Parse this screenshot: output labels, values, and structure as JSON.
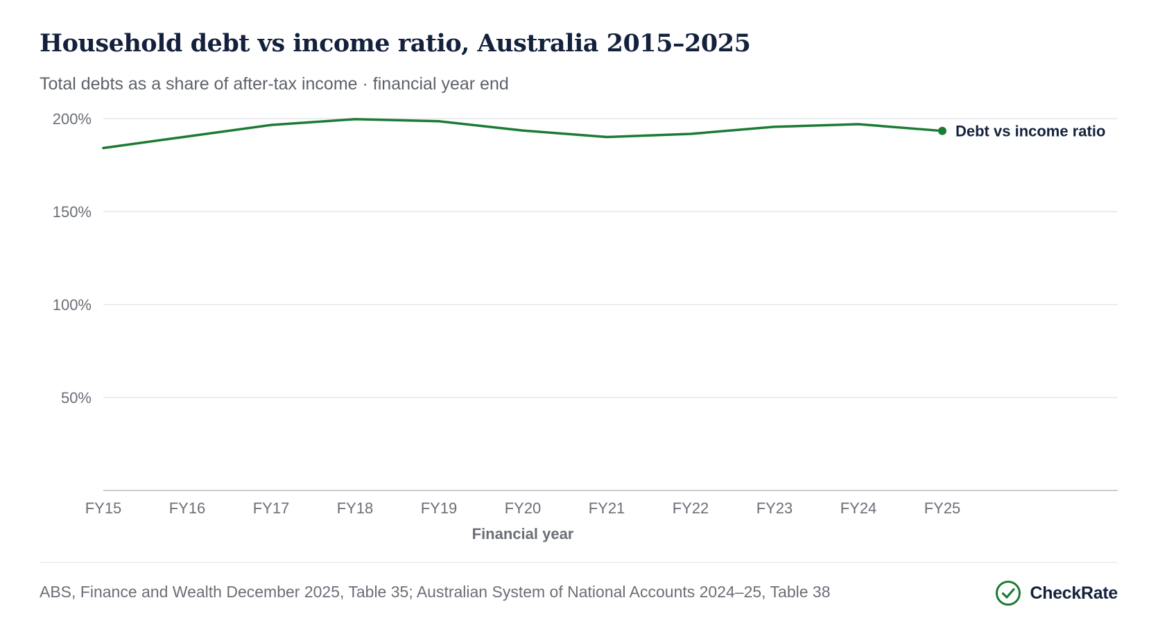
{
  "header": {
    "title": "Household debt vs income ratio, Australia 2015–2025",
    "subtitle": "Total debts as a share of after-tax income · financial year end"
  },
  "footer": {
    "source": "ABS, Finance and Wealth December 2025, Table 35; Australian System of National Accounts 2024–25, Table 38",
    "brand_name": "CheckRate",
    "brand_icon": "check-circle-icon"
  },
  "colors": {
    "series": "#1b7a34",
    "title": "#14213d",
    "grid": "#e3e5e8",
    "axis": "#c9ccd1",
    "tick_text": "#6a6e76"
  },
  "chart_data": {
    "type": "line",
    "title": "Household debt vs income ratio, Australia 2015–2025",
    "subtitle": "Total debts as a share of after-tax income · financial year end",
    "xlabel": "Financial year",
    "ylabel": "",
    "categories": [
      "FY15",
      "FY16",
      "FY17",
      "FY18",
      "FY19",
      "FY20",
      "FY21",
      "FY22",
      "FY23",
      "FY24",
      "FY25"
    ],
    "series": [
      {
        "name": "Debt vs income ratio",
        "color": "#1b7a34",
        "values": [
          184.2,
          190.4,
          196.6,
          199.7,
          198.6,
          193.6,
          190.1,
          191.8,
          195.6,
          197.0,
          193.4
        ]
      }
    ],
    "ylim": [
      0,
      200
    ],
    "yticks": [
      50,
      100,
      150,
      200
    ],
    "ytick_labels": [
      "50%",
      "100%",
      "150%",
      "200%"
    ],
    "grid": true,
    "legend": "direct label at end of line"
  }
}
